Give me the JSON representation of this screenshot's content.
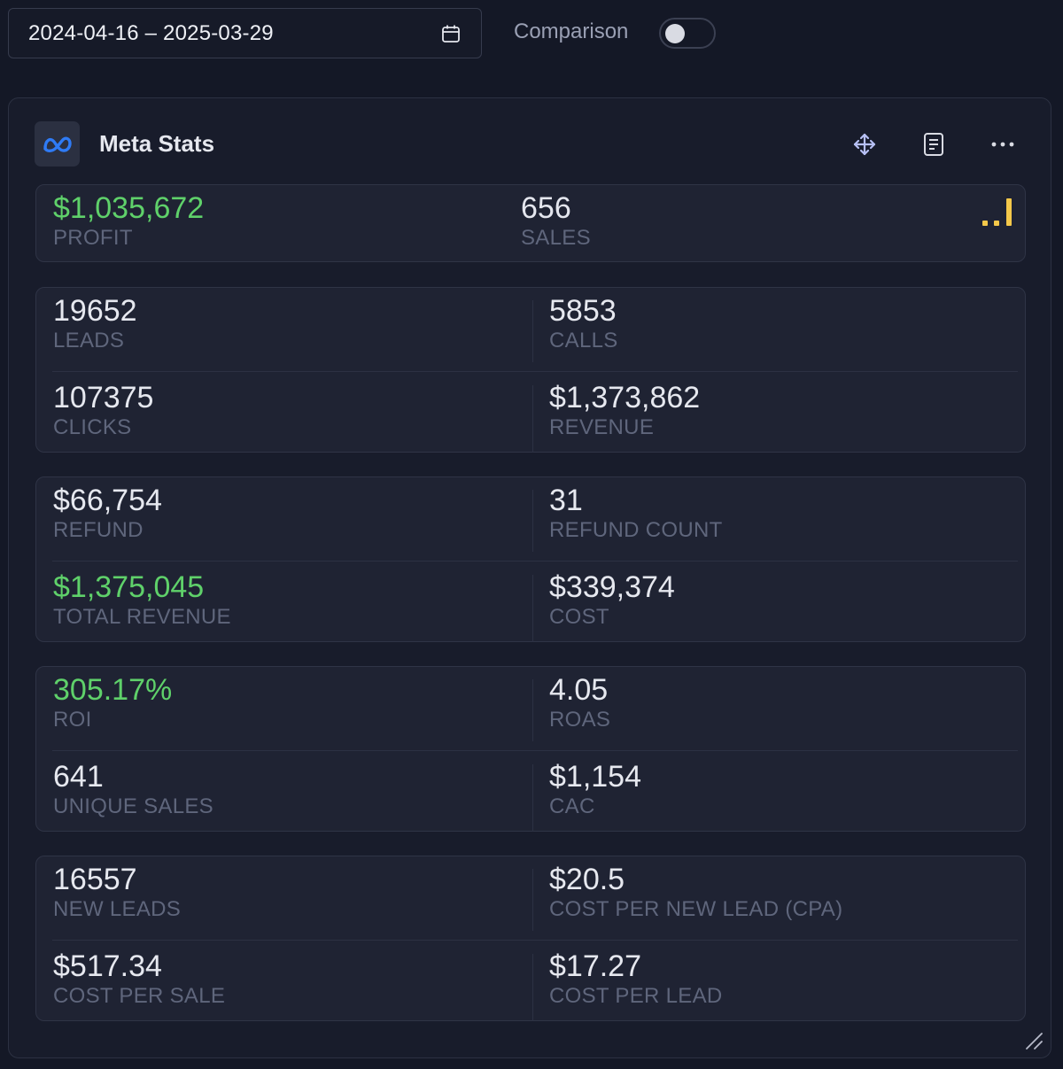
{
  "toolbar": {
    "date_range": "2024-04-16 – 2025-03-29",
    "calendar_icon": "calendar-icon",
    "comparison_label": "Comparison",
    "comparison_enabled": false
  },
  "card": {
    "title": "Meta Stats",
    "logo_icon": "meta-logo-icon",
    "header_icons": [
      "move-icon",
      "document-icon",
      "more-horizontal-icon"
    ],
    "accent_green": "#5fd16a",
    "accent_yellow": "#f4c84a"
  },
  "summary": {
    "profit": {
      "value": "$1,035,672",
      "label": "PROFIT"
    },
    "sales": {
      "value": "656",
      "label": "SALES"
    }
  },
  "groups": [
    [
      {
        "value": "19652",
        "label": "LEADS"
      },
      {
        "value": "5853",
        "label": "CALLS"
      },
      {
        "value": "107375",
        "label": "CLICKS"
      },
      {
        "value": "$1,373,862",
        "label": "REVENUE"
      }
    ],
    [
      {
        "value": "$66,754",
        "label": "REFUND"
      },
      {
        "value": "31",
        "label": "REFUND COUNT"
      },
      {
        "value": "$1,375,045",
        "label": "TOTAL REVENUE"
      },
      {
        "value": "$339,374",
        "label": "COST"
      }
    ],
    [
      {
        "value": "305.17%",
        "label": "ROI"
      },
      {
        "value": "4.05",
        "label": "ROAS"
      },
      {
        "value": "641",
        "label": "UNIQUE SALES"
      },
      {
        "value": "$1,154",
        "label": "CAC"
      }
    ],
    [
      {
        "value": "16557",
        "label": "NEW LEADS"
      },
      {
        "value": "$20.5",
        "label": "COST PER NEW LEAD (CPA)"
      },
      {
        "value": "$517.34",
        "label": "COST PER SALE"
      },
      {
        "value": "$17.27",
        "label": "COST PER LEAD"
      }
    ]
  ]
}
